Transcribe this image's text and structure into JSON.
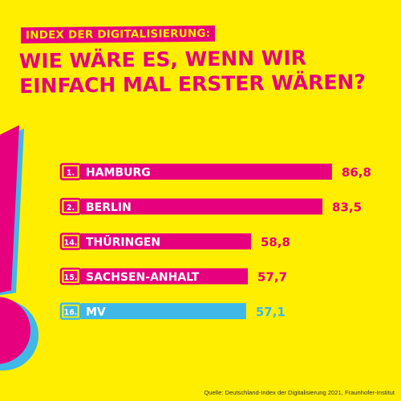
{
  "header": {
    "kicker": "INDEX DER DIGITALISIERUNG:",
    "headline_line1": "WIE WÄRE ES, WENN WIR",
    "headline_line2": "EINFACH MAL ERSTER WÄREN?"
  },
  "colors": {
    "background": "#FFEE00",
    "magenta": "#E6007E",
    "cyan": "#3FB8E8"
  },
  "chart_data": {
    "type": "bar",
    "orientation": "horizontal",
    "categories": [
      "HAMBURG",
      "BERLIN",
      "THÜRINGEN",
      "SACHSEN-ANHALT",
      "MV"
    ],
    "ranks": [
      "1.",
      "2.",
      "14.",
      "15.",
      "16."
    ],
    "value_labels": [
      "86,8",
      "83,5",
      "58,8",
      "57,7",
      "57,1"
    ],
    "values": [
      86.8,
      83.5,
      58.8,
      57.7,
      57.1
    ],
    "highlight": "MV",
    "xlim": [
      0,
      100
    ],
    "grid": false,
    "legend": "none"
  },
  "footer": {
    "source": "Quelle: Deutschland-Index der Digitalisierung 2021, Fraunhofer-Institut"
  }
}
